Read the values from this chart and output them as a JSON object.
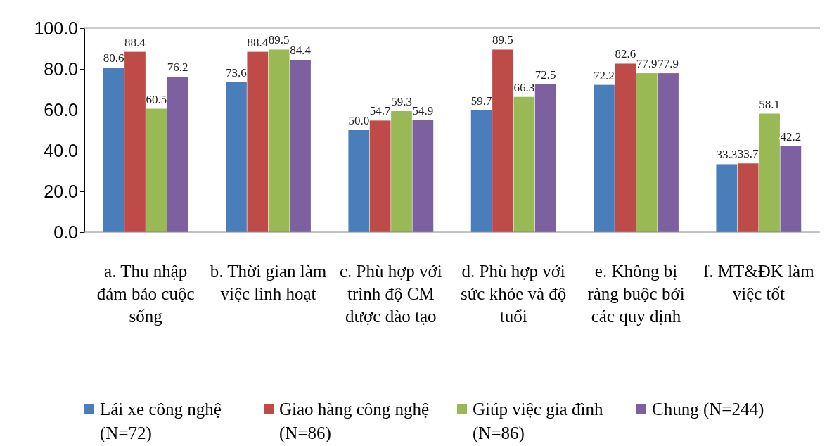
{
  "chart_data": {
    "type": "bar",
    "categories": [
      "a. Thu nhập đảm bảo cuộc sống",
      "b. Thời gian làm việc linh hoạt",
      "c. Phù hợp với trình độ CM được đào tạo",
      "d. Phù hợp với sức khỏe và độ tuổi",
      "e. Không bị ràng buộc bởi các quy định",
      "f. MT&ĐK làm việc tốt"
    ],
    "series": [
      {
        "name": "Lái xe công nghệ (N=72)",
        "color": "#4a7ebb",
        "values": [
          80.6,
          73.6,
          50.0,
          59.7,
          72.2,
          33.3
        ],
        "value_labels": [
          "80.6",
          "73.6",
          "50.0",
          "59.7",
          "72.2",
          "33.3"
        ]
      },
      {
        "name": "Giao hàng công nghệ (N=86)",
        "color": "#be4b48",
        "values": [
          88.4,
          88.4,
          54.7,
          89.5,
          82.6,
          33.7
        ],
        "value_labels": [
          "88.4",
          "88.4",
          "54.7",
          "89.5",
          "82.6",
          "33.7"
        ]
      },
      {
        "name": "Giúp việc gia đình (N=86)",
        "color": "#98b954",
        "values": [
          60.5,
          89.5,
          59.3,
          66.3,
          77.9,
          58.1
        ],
        "value_labels": [
          "60.5",
          "89.5",
          "59.3",
          "66.3",
          "77.9",
          "58.1"
        ]
      },
      {
        "name": "Chung (N=244)",
        "color": "#7d60a0",
        "values": [
          76.2,
          84.4,
          54.9,
          72.5,
          77.9,
          42.2
        ],
        "value_labels": [
          "76.2",
          "84.4",
          "54.9",
          "72.5",
          "77.9",
          "42.2"
        ]
      }
    ],
    "ylim": [
      0,
      100
    ],
    "yticks": [
      {
        "value": 0,
        "label": "0.0"
      },
      {
        "value": 20,
        "label": "20.0"
      },
      {
        "value": 40,
        "label": "40.0"
      },
      {
        "value": 60,
        "label": "60.0"
      },
      {
        "value": 80,
        "label": "80.0"
      },
      {
        "value": 100,
        "label": "100.0"
      }
    ],
    "legend": "bottom"
  }
}
